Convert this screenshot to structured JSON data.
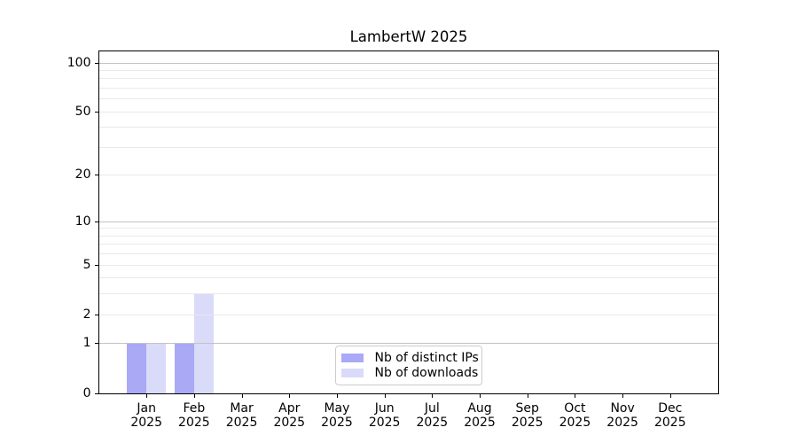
{
  "title": "LambertW 2025",
  "chart_data": {
    "type": "bar",
    "title": "LambertW 2025",
    "scale": "log1p",
    "categories": [
      "Jan",
      "Feb",
      "Mar",
      "Apr",
      "May",
      "Jun",
      "Jul",
      "Aug",
      "Sep",
      "Oct",
      "Nov",
      "Dec"
    ],
    "year": "2025",
    "series": [
      {
        "name": "Nb of distinct IPs",
        "color": "#a9a9f5",
        "values": [
          1,
          1,
          0,
          0,
          0,
          0,
          0,
          0,
          0,
          0,
          0,
          0
        ]
      },
      {
        "name": "Nb of downloads",
        "color": "#dadaf9",
        "values": [
          1,
          3,
          0,
          0,
          0,
          0,
          0,
          0,
          0,
          0,
          0,
          0
        ]
      }
    ],
    "y_major_ticks": [
      0,
      1,
      2,
      5,
      10,
      20,
      50,
      100
    ],
    "y_minor_gridlines": [
      3,
      4,
      6,
      7,
      8,
      9,
      30,
      40,
      60,
      70,
      80,
      90
    ],
    "y_decade_lines": [
      1,
      10,
      100
    ],
    "ylim": [
      0,
      118
    ],
    "xlabel": "",
    "ylabel": "",
    "grid": "horizontal",
    "legend_position": "lower-center",
    "colors": {
      "grid_major": "#c3c3c3",
      "grid_minor": "#e9e9e9",
      "axis": "#000000",
      "background": "#ffffff"
    }
  }
}
